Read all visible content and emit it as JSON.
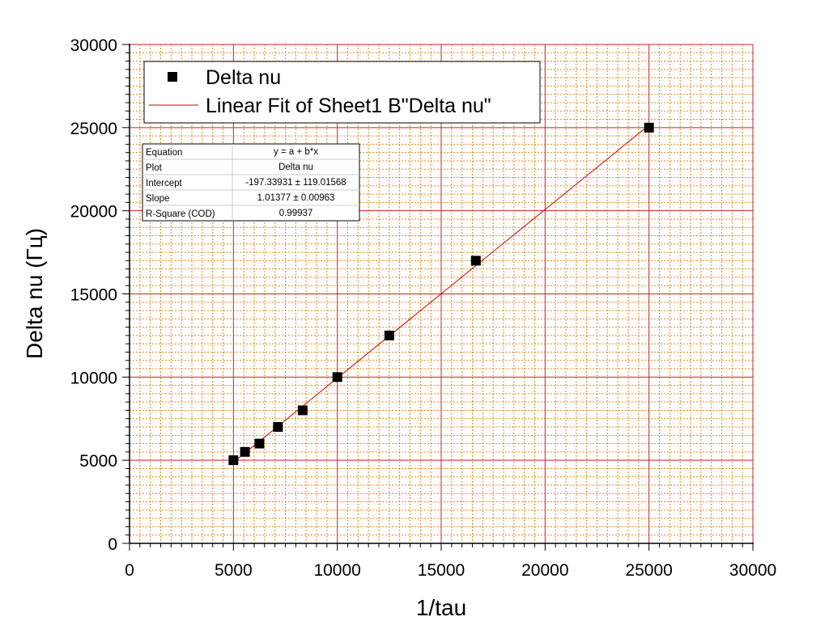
{
  "chart_data": {
    "type": "scatter",
    "xlabel": "1/tau",
    "ylabel": "Delta nu (Гц)",
    "xlim": [
      0,
      30000
    ],
    "ylim": [
      0,
      30000
    ],
    "x_ticks": [
      "0",
      "5000",
      "10000",
      "15000",
      "20000",
      "25000",
      "30000"
    ],
    "y_ticks": [
      "0",
      "5000",
      "10000",
      "15000",
      "20000",
      "25000",
      "30000"
    ],
    "grid": true,
    "legend_position": "top-left",
    "series": [
      {
        "name": "Delta nu",
        "type": "scatter",
        "marker": "square",
        "color": "#000000",
        "x": [
          5000,
          5556,
          6250,
          7143,
          8333,
          10000,
          12500,
          16667,
          25000
        ],
        "y": [
          5000,
          5500,
          6000,
          7000,
          8000,
          10000,
          12500,
          17000,
          25000
        ]
      },
      {
        "name": "Linear Fit of Sheet1 B\"Delta nu\"",
        "type": "line",
        "color": "#cc0000",
        "x": [
          5000,
          25000
        ],
        "y": [
          4871.51,
          25147.0
        ]
      }
    ],
    "fit_table": {
      "rows": [
        {
          "label": "Equation",
          "value": "y = a + b*x"
        },
        {
          "label": "Plot",
          "value": "Delta nu"
        },
        {
          "label": "Intercept",
          "value": "-197.33931 ± 119.01568"
        },
        {
          "label": "Slope",
          "value": "1.01377 ± 0.00963"
        },
        {
          "label": "R-Square (COD)",
          "value": "0.99937"
        }
      ]
    }
  },
  "colors": {
    "major_grid": "#cc2222",
    "minor_grid": "#e08a1e",
    "fit_line": "#cc0000",
    "marker": "#000000"
  }
}
